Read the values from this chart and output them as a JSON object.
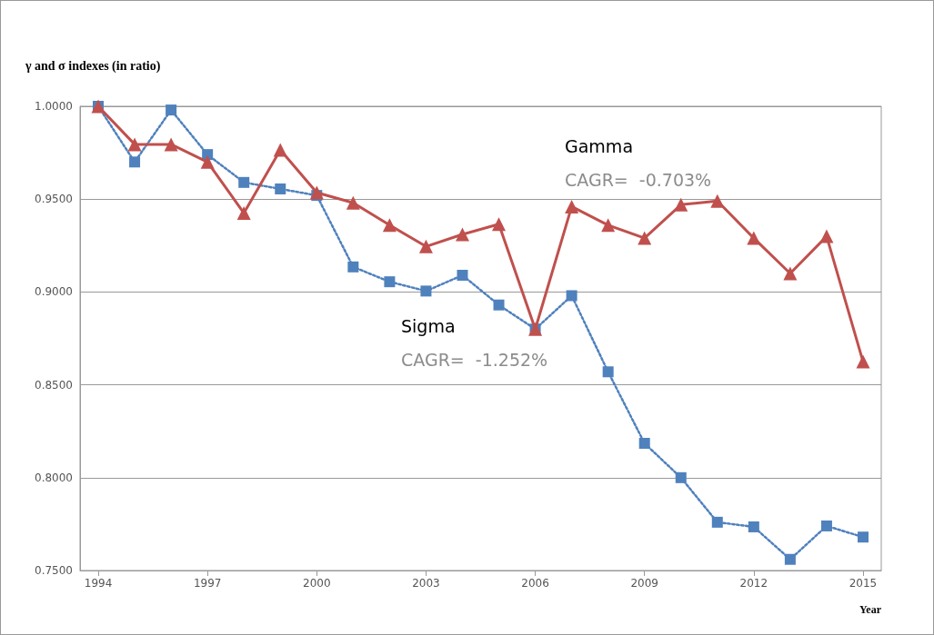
{
  "chart_data": {
    "type": "line",
    "ylabel": "γ and σ indexes (in ratio)",
    "xlabel": "Year",
    "x": [
      1994,
      1995,
      1996,
      1997,
      1998,
      1999,
      2000,
      2001,
      2002,
      2003,
      2004,
      2005,
      2006,
      2007,
      2008,
      2009,
      2010,
      2011,
      2012,
      2013,
      2014,
      2015
    ],
    "series": [
      {
        "name": "Gamma",
        "color": "#c0504d",
        "marker": "triangle",
        "line_style": "solid",
        "values": [
          1.0,
          0.9795,
          0.9795,
          0.97,
          0.9425,
          0.9765,
          0.9535,
          0.948,
          0.936,
          0.9245,
          0.931,
          0.9365,
          0.88,
          0.946,
          0.936,
          0.929,
          0.947,
          0.949,
          0.929,
          0.91,
          0.93,
          0.8625
        ]
      },
      {
        "name": "Sigma",
        "color": "#4f81bd",
        "marker": "square",
        "line_style": "dotted",
        "values": [
          1.0,
          0.97,
          0.998,
          0.974,
          0.959,
          0.9555,
          0.952,
          0.9135,
          0.9055,
          0.9005,
          0.909,
          0.893,
          0.88,
          0.898,
          0.857,
          0.8185,
          0.8,
          0.776,
          0.7735,
          0.756,
          0.774,
          0.768
        ]
      }
    ],
    "annotations": [
      "CAGR=  -0.703%",
      "CAGR=  -1.252%"
    ],
    "xlim": [
      1993.5,
      2015.5
    ],
    "xticks": [
      1994,
      1997,
      2000,
      2003,
      2006,
      2009,
      2012,
      2015
    ],
    "ylim": [
      0.75,
      1.0
    ],
    "yticks": [
      {
        "value": 0.75,
        "label": "0.7500"
      },
      {
        "value": 0.8,
        "label": "0.8000"
      },
      {
        "value": 0.85,
        "label": "0.8500"
      },
      {
        "value": 0.9,
        "label": "0.9000"
      },
      {
        "value": 0.95,
        "label": "0.9500"
      },
      {
        "value": 1.0,
        "label": "1.0000"
      }
    ],
    "grid": "y",
    "legend": false
  }
}
